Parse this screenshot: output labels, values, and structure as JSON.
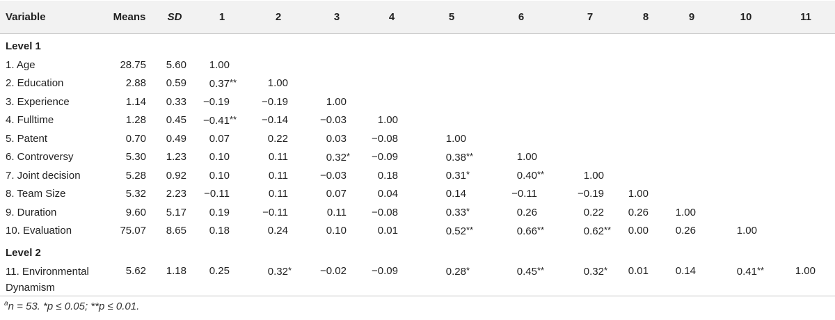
{
  "header": [
    "Variable",
    "Means",
    "SD",
    "1",
    "2",
    "3",
    "4",
    "5",
    "6",
    "7",
    "8",
    "9",
    "10",
    "11"
  ],
  "sections": [
    {
      "label": "Level 1",
      "rows": [
        {
          "variable": "1. Age",
          "means": "28.75",
          "sd": "5.60",
          "corr": [
            [
              "1.00",
              ""
            ]
          ]
        },
        {
          "variable": "2. Education",
          "means": "2.88",
          "sd": "0.59",
          "corr": [
            [
              "0.37",
              "**"
            ],
            [
              "1.00",
              ""
            ]
          ]
        },
        {
          "variable": "3. Experience",
          "means": "1.14",
          "sd": "0.33",
          "corr": [
            [
              "−0.19",
              ""
            ],
            [
              "−0.19",
              ""
            ],
            [
              "1.00",
              ""
            ]
          ]
        },
        {
          "variable": "4. Fulltime",
          "means": "1.28",
          "sd": "0.45",
          "corr": [
            [
              "−0.41",
              "**"
            ],
            [
              "−0.14",
              ""
            ],
            [
              "−0.03",
              ""
            ],
            [
              "1.00",
              ""
            ]
          ]
        },
        {
          "variable": "5. Patent",
          "means": "0.70",
          "sd": "0.49",
          "corr": [
            [
              "0.07",
              ""
            ],
            [
              "0.22",
              ""
            ],
            [
              "0.03",
              ""
            ],
            [
              "−0.08",
              ""
            ],
            [
              "1.00",
              ""
            ]
          ]
        },
        {
          "variable": "6. Controversy",
          "means": "5.30",
          "sd": "1.23",
          "corr": [
            [
              "0.10",
              ""
            ],
            [
              "0.11",
              ""
            ],
            [
              "0.32",
              "*"
            ],
            [
              "−0.09",
              ""
            ],
            [
              "0.38",
              "**"
            ],
            [
              "1.00",
              ""
            ]
          ]
        },
        {
          "variable": "7. Joint decision",
          "means": "5.28",
          "sd": "0.92",
          "corr": [
            [
              "0.10",
              ""
            ],
            [
              "0.11",
              ""
            ],
            [
              "−0.03",
              ""
            ],
            [
              "0.18",
              ""
            ],
            [
              "0.31",
              "*"
            ],
            [
              "0.40",
              "**"
            ],
            [
              "1.00",
              ""
            ]
          ]
        },
        {
          "variable": "8. Team Size",
          "means": "5.32",
          "sd": "2.23",
          "corr": [
            [
              "−0.11",
              ""
            ],
            [
              "0.11",
              ""
            ],
            [
              "0.07",
              ""
            ],
            [
              "0.04",
              ""
            ],
            [
              "0.14",
              ""
            ],
            [
              "−0.11",
              ""
            ],
            [
              "−0.19",
              ""
            ],
            [
              "1.00",
              ""
            ]
          ]
        },
        {
          "variable": "9. Duration",
          "means": "9.60",
          "sd": "5.17",
          "corr": [
            [
              "0.19",
              ""
            ],
            [
              "−0.11",
              ""
            ],
            [
              "0.11",
              ""
            ],
            [
              "−0.08",
              ""
            ],
            [
              "0.33",
              "*"
            ],
            [
              "0.26",
              ""
            ],
            [
              "0.22",
              ""
            ],
            [
              "0.26",
              ""
            ],
            [
              "1.00",
              ""
            ]
          ]
        },
        {
          "variable": "10. Evaluation",
          "means": "75.07",
          "sd": "8.65",
          "corr": [
            [
              "0.18",
              ""
            ],
            [
              "0.24",
              ""
            ],
            [
              "0.10",
              ""
            ],
            [
              "0.01",
              ""
            ],
            [
              "0.52",
              "**"
            ],
            [
              "0.66",
              "**"
            ],
            [
              "0.62",
              "**"
            ],
            [
              "0.00",
              ""
            ],
            [
              "0.26",
              ""
            ],
            [
              "1.00",
              ""
            ]
          ]
        }
      ]
    },
    {
      "label": "Level 2",
      "rows": [
        {
          "variable": "11. Environmental Dynamism",
          "means": "5.62",
          "sd": "1.18",
          "corr": [
            [
              "0.25",
              ""
            ],
            [
              "0.32",
              "*"
            ],
            [
              "−0.02",
              ""
            ],
            [
              "−0.09",
              ""
            ],
            [
              "0.28",
              "*"
            ],
            [
              "0.45",
              "**"
            ],
            [
              "0.32",
              "*"
            ],
            [
              "0.01",
              ""
            ],
            [
              "0.14",
              ""
            ],
            [
              "0.41",
              "**"
            ],
            [
              "1.00",
              ""
            ]
          ]
        }
      ]
    }
  ],
  "footnote": {
    "sup": "a",
    "text": "n = 53. *p ≤ 0.05; **p ≤ 0.01."
  }
}
